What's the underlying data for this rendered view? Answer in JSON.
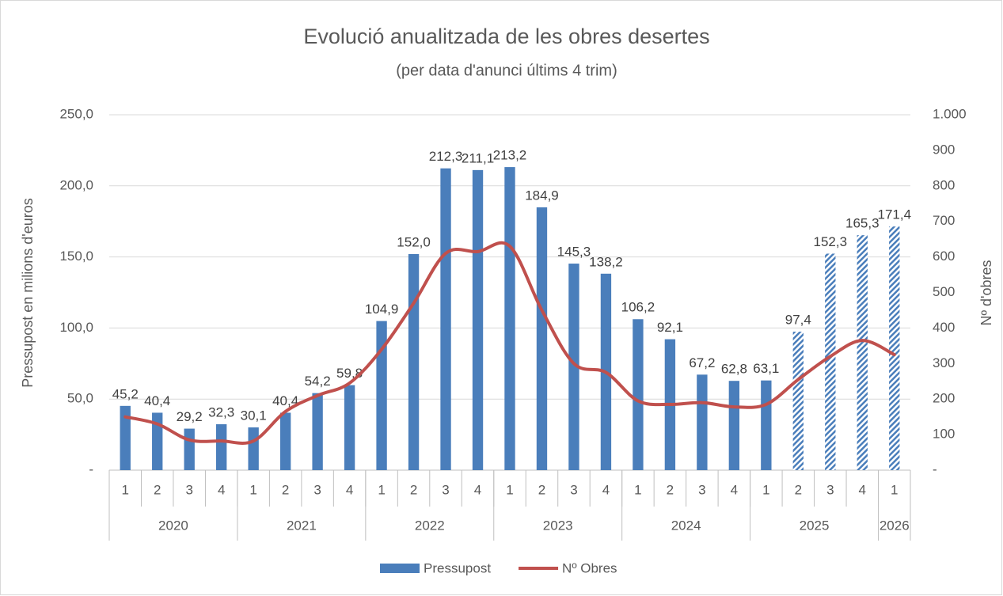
{
  "chart_data": {
    "type": "bar-line",
    "title": "Evolució anualitzada de les obres desertes",
    "subtitle": "(per data d'anunci últims 4 trim)",
    "ylabel": "Pressupost en milions d'euros",
    "y2label": "Nº d'obres",
    "categories": [
      "1",
      "2",
      "3",
      "4",
      "1",
      "2",
      "3",
      "4",
      "1",
      "2",
      "3",
      "4",
      "1",
      "2",
      "3",
      "4",
      "1",
      "2",
      "3",
      "4",
      "1",
      "2",
      "3",
      "4",
      "1"
    ],
    "groups": [
      {
        "name": "2020",
        "count": 4
      },
      {
        "name": "2021",
        "count": 4
      },
      {
        "name": "2022",
        "count": 4
      },
      {
        "name": "2023",
        "count": 4
      },
      {
        "name": "2024",
        "count": 4
      },
      {
        "name": "2025",
        "count": 4
      },
      {
        "name": "2026",
        "count": 1
      }
    ],
    "series": [
      {
        "name": "Pressupost",
        "kind": "bar",
        "color": "#4a7ebb",
        "values": [
          45.2,
          40.4,
          29.2,
          32.3,
          30.1,
          40.4,
          54.2,
          59.8,
          104.9,
          152.0,
          212.3,
          211.1,
          213.2,
          184.9,
          145.3,
          138.2,
          106.2,
          92.1,
          67.2,
          62.8,
          63.1,
          97.4,
          152.3,
          165.3,
          171.4
        ],
        "value_labels": [
          "45,2",
          "40,4",
          "29,2",
          "32,3",
          "30,1",
          "40,4",
          "54,2",
          "59,8",
          "104,9",
          "152,0",
          "212,3",
          "211,1",
          "213,2",
          "184,9",
          "145,3",
          "138,2",
          "106,2",
          "92,1",
          "67,2",
          "62,8",
          "63,1",
          "97,4",
          "152,3",
          "165,3",
          "171,4"
        ],
        "patterns": [
          "solid",
          "solid",
          "solid",
          "solid",
          "solid",
          "solid",
          "solid",
          "solid",
          "solid",
          "solid",
          "solid",
          "solid",
          "solid",
          "solid",
          "solid",
          "solid",
          "solid",
          "solid",
          "solid",
          "solid",
          "solid",
          "hatched",
          "hatched",
          "hatched",
          "hatched"
        ]
      },
      {
        "name": "Nº Obres",
        "kind": "line",
        "axis": "y2",
        "color": "#c0504d",
        "values": [
          150,
          130,
          85,
          82,
          82,
          165,
          210,
          245,
          340,
          470,
          610,
          615,
          630,
          450,
          300,
          275,
          195,
          185,
          190,
          178,
          185,
          255,
          320,
          365,
          325
        ]
      }
    ],
    "ylim": [
      0,
      250
    ],
    "yticks": [
      {
        "value": 0,
        "label": "-"
      },
      {
        "value": 50,
        "label": "50,0"
      },
      {
        "value": 100,
        "label": "100,0"
      },
      {
        "value": 150,
        "label": "150,0"
      },
      {
        "value": 200,
        "label": "200,0"
      },
      {
        "value": 250,
        "label": "250,0"
      }
    ],
    "y2lim": [
      0,
      1000
    ],
    "y2ticks": [
      {
        "value": 0,
        "label": "-"
      },
      100,
      200,
      300,
      400,
      500,
      600,
      700,
      800,
      900,
      {
        "value": 1000,
        "label": "1.000"
      }
    ],
    "grid": true,
    "legend": "bottom"
  }
}
